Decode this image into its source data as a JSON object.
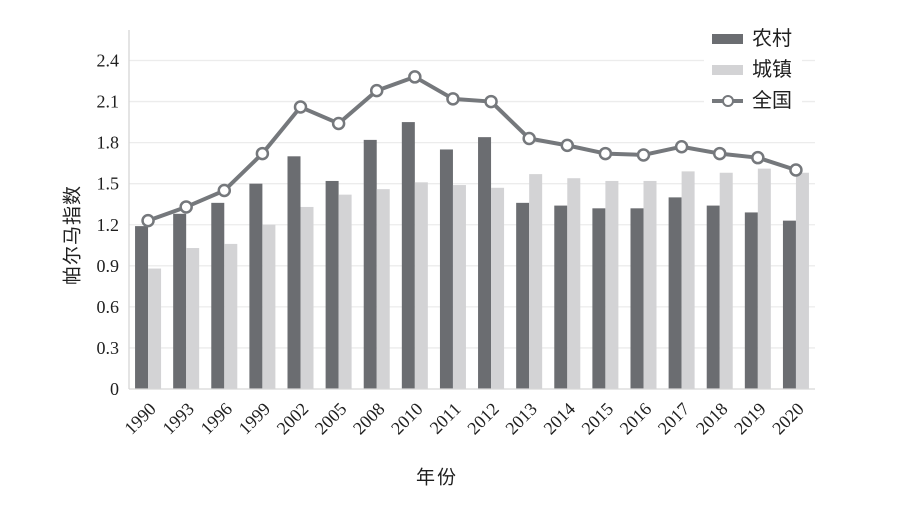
{
  "chart_data": {
    "type": "bar",
    "title": "",
    "xlabel": "年份",
    "ylabel": "帕尔马指数",
    "categories": [
      "1990",
      "1993",
      "1996",
      "1999",
      "2002",
      "2005",
      "2008",
      "2010",
      "2011",
      "2012",
      "2013",
      "2014",
      "2015",
      "2016",
      "2017",
      "2018",
      "2019",
      "2020"
    ],
    "series": [
      {
        "name": "农村",
        "type": "bar",
        "color": "#6b6d71",
        "values": [
          1.19,
          1.28,
          1.36,
          1.5,
          1.7,
          1.52,
          1.82,
          1.95,
          1.75,
          1.84,
          1.36,
          1.34,
          1.32,
          1.32,
          1.4,
          1.34,
          1.29,
          1.23
        ]
      },
      {
        "name": "城镇",
        "type": "bar",
        "color": "#d3d3d5",
        "values": [
          0.88,
          1.03,
          1.06,
          1.2,
          1.33,
          1.42,
          1.46,
          1.51,
          1.49,
          1.47,
          1.57,
          1.54,
          1.52,
          1.52,
          1.59,
          1.58,
          1.61,
          1.58
        ]
      },
      {
        "name": "全国",
        "type": "line",
        "color": "#75787c",
        "marker": "open-circle",
        "values": [
          1.23,
          1.33,
          1.45,
          1.72,
          2.06,
          1.94,
          2.18,
          2.28,
          2.12,
          2.1,
          1.83,
          1.78,
          1.72,
          1.71,
          1.77,
          1.72,
          1.69,
          1.6
        ]
      }
    ],
    "ylim": [
      0,
      2.4
    ],
    "ytick_step": 0.3,
    "ytick_labels": [
      "0",
      "0.3",
      "0.6",
      "0.9",
      "1.2",
      "1.5",
      "1.8",
      "2.1",
      "2.4"
    ],
    "grid": true,
    "legend_position": "top-right"
  },
  "colors": {
    "grid_line": "#ececec",
    "axis_line": "#d6d6d6",
    "text": "#1f1f1f",
    "marker_fill": "#ffffff",
    "background": "#ffffff"
  }
}
